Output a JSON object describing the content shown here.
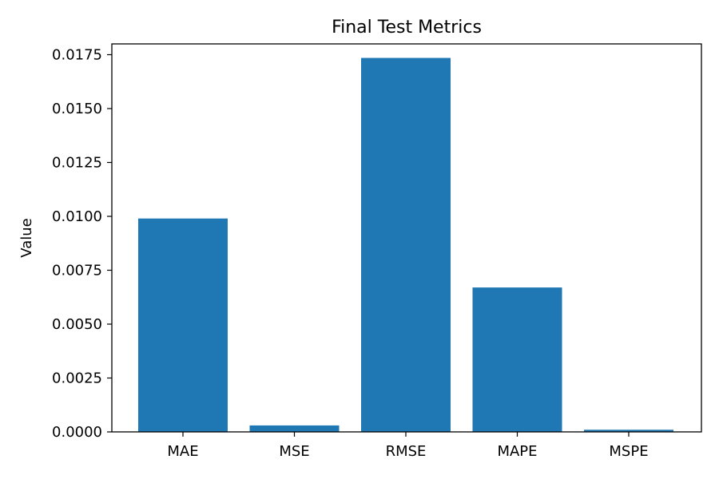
{
  "chart_data": {
    "type": "bar",
    "title": "Final Test Metrics",
    "xlabel": "",
    "ylabel": "Value",
    "categories": [
      "MAE",
      "MSE",
      "RMSE",
      "MAPE",
      "MSPE"
    ],
    "values": [
      0.0099,
      0.0003,
      0.01735,
      0.0067,
      0.0001
    ],
    "ylim": [
      0,
      0.018
    ],
    "yticks": [
      "0.0000",
      "0.0025",
      "0.0050",
      "0.0075",
      "0.0100",
      "0.0125",
      "0.0150",
      "0.0175"
    ],
    "grid": false,
    "legend": "none",
    "bar_color": "#1f77b4"
  }
}
